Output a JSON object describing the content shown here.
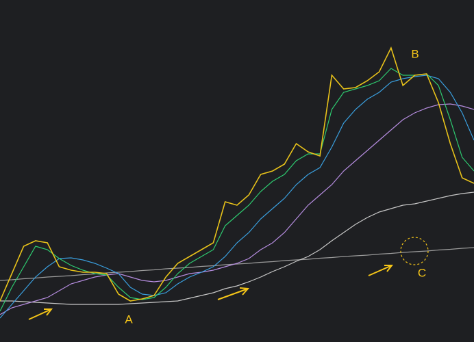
{
  "chart_data": {
    "type": "line",
    "annotations": [
      "A",
      "B",
      "C"
    ],
    "x": [
      0,
      1,
      2,
      3,
      4,
      5,
      6,
      7,
      8,
      9,
      10,
      11,
      12,
      13,
      14,
      15,
      16,
      17,
      18,
      19,
      20,
      21,
      22,
      23,
      24,
      25,
      26,
      27,
      28,
      29,
      30,
      31,
      32,
      33,
      34,
      35,
      36,
      37,
      38,
      39,
      40
    ],
    "xlim": [
      0,
      40
    ],
    "ylim": [
      0,
      100
    ],
    "series": [
      {
        "color": "#9c9c9c",
        "values": [
          18,
          18.2,
          18.5,
          18.7,
          19,
          19.2,
          19.4,
          19.7,
          19.9,
          20.2,
          20.4,
          20.6,
          20.9,
          21.1,
          21.4,
          21.6,
          21.8,
          22.1,
          22.3,
          22.6,
          22.8,
          23,
          23.3,
          23.5,
          23.8,
          24,
          24.2,
          24.5,
          24.7,
          25,
          25.2,
          25.4,
          25.7,
          25.9,
          26.2,
          26.4,
          26.6,
          26.9,
          27.1,
          27.4,
          27.6
        ]
      },
      {
        "color": "#c8c8c8",
        "values": [
          12,
          12,
          11.8,
          11.6,
          11.4,
          11.2,
          11,
          11,
          11,
          11,
          11,
          11.2,
          11.4,
          11.6,
          11.8,
          12,
          12.8,
          13.6,
          14.4,
          15.6,
          16.4,
          17.6,
          19,
          20.6,
          22,
          23.6,
          25,
          27,
          29.6,
          32,
          34.4,
          36.4,
          38,
          39,
          40,
          40.4,
          41.2,
          42,
          42.8,
          43.4,
          43.8
        ]
      },
      {
        "color": "#b68de0",
        "values": [
          8,
          10,
          11,
          12,
          13,
          15,
          17,
          18,
          19,
          19.6,
          20,
          19,
          18,
          17.6,
          18,
          19,
          20,
          20.4,
          21,
          22,
          23,
          24.4,
          27,
          29,
          32,
          36,
          40,
          43,
          46,
          50,
          53,
          56,
          59,
          62,
          65,
          67,
          68.4,
          69.4,
          69.6,
          69,
          68
        ]
      },
      {
        "color": "#3aa0e0",
        "values": [
          7,
          11,
          15,
          19,
          22,
          24.4,
          24.6,
          24,
          23,
          21.6,
          20,
          16,
          14,
          13.6,
          14.4,
          17,
          19,
          20.4,
          22,
          25,
          29,
          32,
          36,
          39,
          42,
          46,
          49,
          51,
          57,
          64,
          68,
          71,
          73,
          76,
          77,
          77.6,
          78,
          77,
          73,
          67,
          59
        ]
      },
      {
        "color": "#2ecc71",
        "values": [
          9,
          16,
          22,
          28,
          27,
          24.4,
          22.4,
          21,
          20,
          19.6,
          16,
          13,
          12.4,
          13,
          16,
          20,
          23,
          25,
          27,
          34,
          37,
          40,
          44,
          47,
          49,
          53,
          55,
          55,
          68,
          73,
          74,
          75,
          76.4,
          80,
          78,
          78,
          78.4,
          75,
          65,
          54,
          50
        ]
      },
      {
        "color": "#e8c21a",
        "values": [
          12,
          20,
          28,
          29.6,
          29,
          22,
          21,
          20.4,
          20.4,
          20,
          14,
          12,
          12.6,
          13.6,
          19,
          23,
          25,
          27,
          29,
          41,
          40,
          43,
          49,
          50,
          52,
          58,
          55.6,
          54.4,
          78,
          74,
          74.4,
          76.4,
          79,
          86,
          75,
          78,
          78.4,
          70,
          58,
          48,
          46.4
        ]
      }
    ]
  }
}
